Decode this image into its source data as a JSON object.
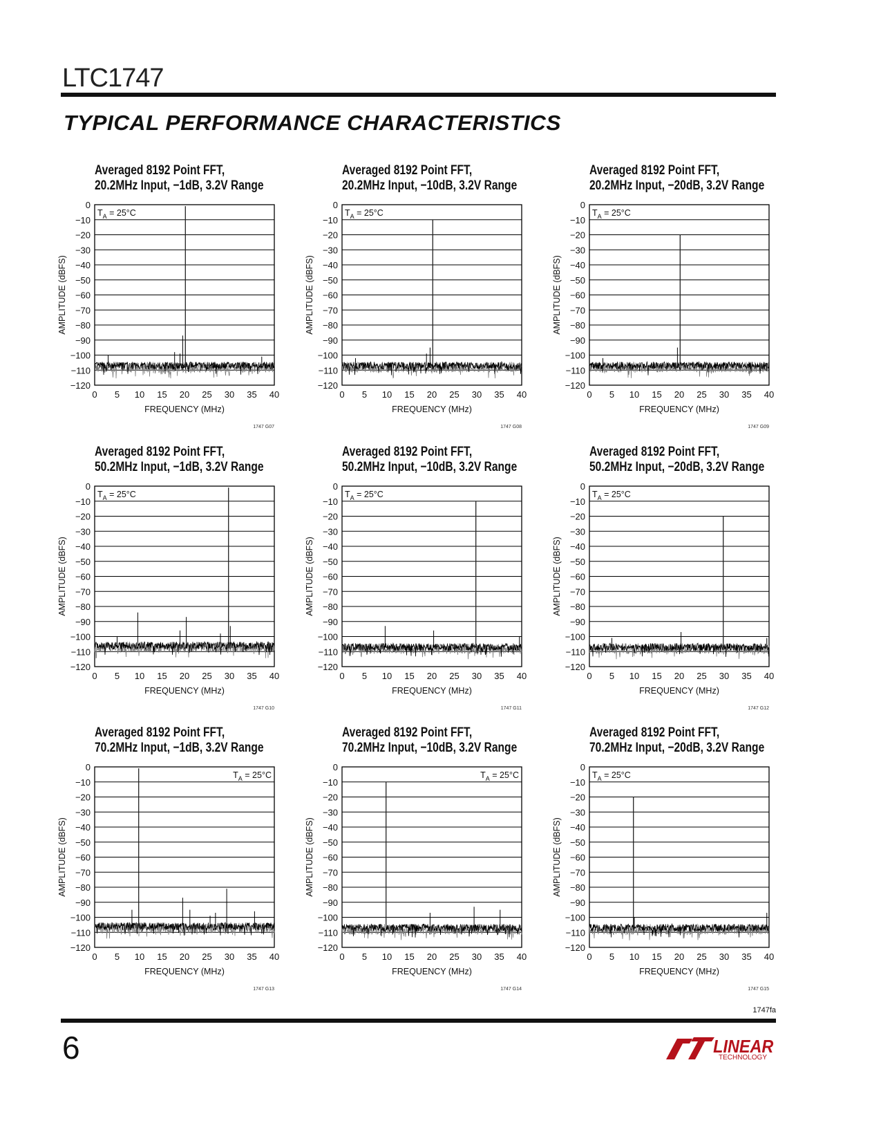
{
  "header": {
    "part_number": "LTC1747",
    "section_title": "TYPICAL PERFORMANCE CHARACTERISTICS"
  },
  "footer": {
    "page_number": "6",
    "doc_code": "1747fa",
    "logo_text": "LINEAR",
    "logo_subtext": "TECHNOLOGY"
  },
  "colors": {
    "trace": "#000000",
    "trace_secondary": "#7a7a7a",
    "grid": "#000000",
    "logo": "#b5121b"
  },
  "chart_data": [
    {
      "type": "line",
      "title": [
        "Averaged 8192 Point FFT,",
        "20.2MHz Input, −1dB, 3.2V Range"
      ],
      "xlabel": "FREQUENCY (MHz)",
      "ylabel": "AMPLITUDE (dBFS)",
      "xlim": [
        0,
        40
      ],
      "ylim": [
        -120,
        0
      ],
      "xticks": [
        "0",
        "5",
        "10",
        "15",
        "20",
        "25",
        "30",
        "35",
        "40"
      ],
      "yticks": [
        "0",
        "−10",
        "−20",
        "−30",
        "−40",
        "−50",
        "−60",
        "−70",
        "−80",
        "−90",
        "−100",
        "−110",
        "−120"
      ],
      "grid": "horizontal",
      "annotation": "TA = 25°C",
      "annotation_position": "top-left",
      "figure_id": "1747 G07",
      "noise_floor_dBFS": -107,
      "spikes": [
        {
          "freq": 20.2,
          "amp": -1
        },
        {
          "freq": 19.6,
          "amp": -87
        },
        {
          "freq": 19.0,
          "amp": -99
        },
        {
          "freq": 17.8,
          "amp": -98
        },
        {
          "freq": 3.0,
          "amp": -100
        },
        {
          "freq": 40,
          "amp": -93
        },
        {
          "freq": 37.2,
          "amp": -101
        }
      ]
    },
    {
      "type": "line",
      "title": [
        "Averaged 8192 Point FFT,",
        "20.2MHz Input, −10dB, 3.2V Range"
      ],
      "xlabel": "FREQUENCY (MHz)",
      "ylabel": "AMPLITUDE (dBFS)",
      "xlim": [
        0,
        40
      ],
      "ylim": [
        -120,
        0
      ],
      "xticks": [
        "0",
        "5",
        "10",
        "15",
        "20",
        "25",
        "30",
        "35",
        "40"
      ],
      "yticks": [
        "0",
        "−10",
        "−20",
        "−30",
        "−40",
        "−50",
        "−60",
        "−70",
        "−80",
        "−90",
        "−100",
        "−110",
        "−120"
      ],
      "grid": "horizontal",
      "annotation": "TA = 25°C",
      "annotation_position": "top-left",
      "figure_id": "1747 G08",
      "noise_floor_dBFS": -107,
      "spikes": [
        {
          "freq": 20.2,
          "amp": -10
        },
        {
          "freq": 19.6,
          "amp": -95
        },
        {
          "freq": 18.8,
          "amp": -99
        },
        {
          "freq": 40,
          "amp": -92
        },
        {
          "freq": 3.0,
          "amp": -102
        }
      ]
    },
    {
      "type": "line",
      "title": [
        "Averaged 8192 Point FFT,",
        "20.2MHz Input, −20dB, 3.2V Range"
      ],
      "xlabel": "FREQUENCY (MHz)",
      "ylabel": "AMPLITUDE (dBFS)",
      "xlim": [
        0,
        40
      ],
      "ylim": [
        -120,
        0
      ],
      "xticks": [
        "0",
        "5",
        "10",
        "15",
        "20",
        "25",
        "30",
        "35",
        "40"
      ],
      "yticks": [
        "0",
        "−10",
        "−20",
        "−30",
        "−40",
        "−50",
        "−60",
        "−70",
        "−80",
        "−90",
        "−100",
        "−110",
        "−120"
      ],
      "grid": "horizontal",
      "annotation": "TA = 25°C",
      "annotation_position": "top-left",
      "figure_id": "1747 G09",
      "noise_floor_dBFS": -107,
      "spikes": [
        {
          "freq": 20.2,
          "amp": -20
        },
        {
          "freq": 19.6,
          "amp": -95
        },
        {
          "freq": 40,
          "amp": -97
        },
        {
          "freq": 3.0,
          "amp": -102
        }
      ]
    },
    {
      "type": "line",
      "title": [
        "Averaged 8192 Point FFT,",
        "50.2MHz Input, −1dB, 3.2V Range"
      ],
      "xlabel": "FREQUENCY (MHz)",
      "ylabel": "AMPLITUDE (dBFS)",
      "xlim": [
        0,
        40
      ],
      "ylim": [
        -120,
        0
      ],
      "xticks": [
        "0",
        "5",
        "10",
        "15",
        "20",
        "25",
        "30",
        "35",
        "40"
      ],
      "yticks": [
        "0",
        "−10",
        "−20",
        "−30",
        "−40",
        "−50",
        "−60",
        "−70",
        "−80",
        "−90",
        "−100",
        "−110",
        "−120"
      ],
      "grid": "horizontal",
      "annotation": "TA = 25°C",
      "annotation_position": "top-left",
      "figure_id": "1747 G10",
      "noise_floor_dBFS": -106,
      "spikes": [
        {
          "freq": 29.8,
          "amp": -1
        },
        {
          "freq": 9.6,
          "amp": -84
        },
        {
          "freq": 20.4,
          "amp": -87
        },
        {
          "freq": 19.0,
          "amp": -96
        },
        {
          "freq": 30.2,
          "amp": -93
        },
        {
          "freq": 28.0,
          "amp": -98
        },
        {
          "freq": 5.0,
          "amp": -100
        }
      ]
    },
    {
      "type": "line",
      "title": [
        "Averaged 8192 Point FFT,",
        "50.2MHz Input, −10dB, 3.2V Range"
      ],
      "xlabel": "FREQUENCY (MHz)",
      "ylabel": "AMPLITUDE (dBFS)",
      "xlim": [
        0,
        40
      ],
      "ylim": [
        -120,
        0
      ],
      "xticks": [
        "0",
        "5",
        "10",
        "15",
        "20",
        "25",
        "30",
        "35",
        "40"
      ],
      "yticks": [
        "0",
        "−10",
        "−20",
        "−30",
        "−40",
        "−50",
        "−60",
        "−70",
        "−80",
        "−90",
        "−100",
        "−110",
        "−120"
      ],
      "grid": "horizontal",
      "annotation": "TA = 25°C",
      "annotation_position": "top-left",
      "figure_id": "1747 G11",
      "noise_floor_dBFS": -107,
      "spikes": [
        {
          "freq": 29.8,
          "amp": -10
        },
        {
          "freq": 9.6,
          "amp": -93
        },
        {
          "freq": 20.4,
          "amp": -96
        },
        {
          "freq": 39.5,
          "amp": -100
        }
      ]
    },
    {
      "type": "line",
      "title": [
        "Averaged 8192 Point FFT,",
        "50.2MHz Input, −20dB, 3.2V Range"
      ],
      "xlabel": "FREQUENCY (MHz)",
      "ylabel": "AMPLITUDE (dBFS)",
      "xlim": [
        0,
        40
      ],
      "ylim": [
        -120,
        0
      ],
      "xticks": [
        "0",
        "5",
        "10",
        "15",
        "20",
        "25",
        "30",
        "35",
        "40"
      ],
      "yticks": [
        "0",
        "−10",
        "−20",
        "−30",
        "−40",
        "−50",
        "−60",
        "−70",
        "−80",
        "−90",
        "−100",
        "−110",
        "−120"
      ],
      "grid": "horizontal",
      "annotation": "TA = 25°C",
      "annotation_position": "top-left",
      "figure_id": "1747 G12",
      "noise_floor_dBFS": -107,
      "spikes": [
        {
          "freq": 29.8,
          "amp": -20
        },
        {
          "freq": 20.4,
          "amp": -97
        },
        {
          "freq": 5.0,
          "amp": -101
        },
        {
          "freq": 39.5,
          "amp": -101
        }
      ]
    },
    {
      "type": "line",
      "title": [
        "Averaged 8192 Point FFT,",
        "70.2MHz Input, −1dB, 3.2V Range"
      ],
      "xlabel": "FREQUENCY (MHz)",
      "ylabel": "AMPLITUDE (dBFS)",
      "xlim": [
        0,
        40
      ],
      "ylim": [
        -120,
        0
      ],
      "xticks": [
        "0",
        "5",
        "10",
        "15",
        "20",
        "25",
        "30",
        "35",
        "40"
      ],
      "yticks": [
        "0",
        "−10",
        "−20",
        "−30",
        "−40",
        "−50",
        "−60",
        "−70",
        "−80",
        "−90",
        "−100",
        "−110",
        "−120"
      ],
      "grid": "horizontal",
      "annotation": "TA = 25°C",
      "annotation_position": "top-right",
      "figure_id": "1747 G13",
      "noise_floor_dBFS": -106,
      "spikes": [
        {
          "freq": 9.8,
          "amp": -1
        },
        {
          "freq": 29.4,
          "amp": -81
        },
        {
          "freq": 19.6,
          "amp": -87
        },
        {
          "freq": 21.2,
          "amp": -95
        },
        {
          "freq": 8.3,
          "amp": -95
        },
        {
          "freq": 26.9,
          "amp": -97
        },
        {
          "freq": 35.6,
          "amp": -96
        },
        {
          "freq": 25.7,
          "amp": -99
        }
      ]
    },
    {
      "type": "line",
      "title": [
        "Averaged 8192 Point FFT,",
        "70.2MHz Input, −10dB, 3.2V Range"
      ],
      "xlabel": "FREQUENCY (MHz)",
      "ylabel": "AMPLITUDE (dBFS)",
      "xlim": [
        0,
        40
      ],
      "ylim": [
        -120,
        0
      ],
      "xticks": [
        "0",
        "5",
        "10",
        "15",
        "20",
        "25",
        "30",
        "35",
        "40"
      ],
      "yticks": [
        "0",
        "−10",
        "−20",
        "−30",
        "−40",
        "−50",
        "−60",
        "−70",
        "−80",
        "−90",
        "−100",
        "−110",
        "−120"
      ],
      "grid": "horizontal",
      "annotation": "TA = 25°C",
      "annotation_position": "top-right",
      "figure_id": "1747 G14",
      "noise_floor_dBFS": -107,
      "spikes": [
        {
          "freq": 9.8,
          "amp": -10
        },
        {
          "freq": 29.4,
          "amp": -93
        },
        {
          "freq": 35.2,
          "amp": -95
        },
        {
          "freq": 19.6,
          "amp": -97
        }
      ]
    },
    {
      "type": "line",
      "title": [
        "Averaged 8192 Point FFT,",
        "70.2MHz Input, −20dB, 3.2V Range"
      ],
      "xlabel": "FREQUENCY (MHz)",
      "ylabel": "AMPLITUDE (dBFS)",
      "xlim": [
        0,
        40
      ],
      "ylim": [
        -120,
        0
      ],
      "xticks": [
        "0",
        "5",
        "10",
        "15",
        "20",
        "25",
        "30",
        "35",
        "40"
      ],
      "yticks": [
        "0",
        "−10",
        "−20",
        "−30",
        "−40",
        "−50",
        "−60",
        "−70",
        "−80",
        "−90",
        "−100",
        "−110",
        "−120"
      ],
      "grid": "horizontal",
      "annotation": "TA = 25°C",
      "annotation_position": "top-left",
      "figure_id": "1747 G15",
      "noise_floor_dBFS": -107,
      "spikes": [
        {
          "freq": 9.8,
          "amp": -20
        },
        {
          "freq": 39.5,
          "amp": -97
        },
        {
          "freq": 10.0,
          "amp": -100
        }
      ]
    }
  ]
}
